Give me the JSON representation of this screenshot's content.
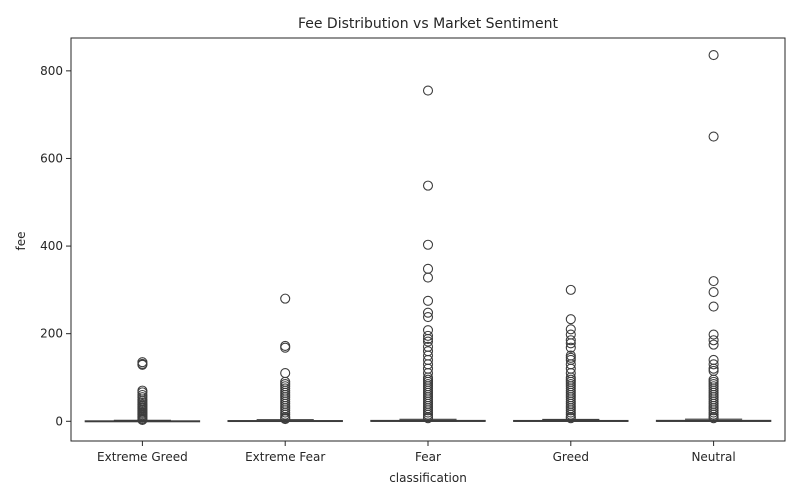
{
  "chart_data": {
    "type": "box",
    "title": "Fee Distribution vs Market Sentiment",
    "xlabel": "classification",
    "ylabel": "fee",
    "categories": [
      "Extreme Greed",
      "Extreme Fear",
      "Fear",
      "Greed",
      "Neutral"
    ],
    "ylim": [
      -45,
      875
    ],
    "yticks": [
      0,
      200,
      400,
      600,
      800
    ],
    "grid": false,
    "legend": "none",
    "colors": {
      "box_face": "#4c72b0",
      "line": "#3d3d3d",
      "frame": "#262626"
    },
    "boxes": [
      {
        "category": "Extreme Greed",
        "min": 0,
        "q1": 0.0,
        "median": 0.2,
        "q3": 0.9,
        "max": 2.2,
        "outliers": [
          135,
          131,
          129,
          70,
          66,
          60,
          55,
          50,
          46,
          42,
          38,
          35,
          32,
          29,
          26,
          23,
          20,
          17,
          14,
          11,
          8,
          5,
          3
        ]
      },
      {
        "category": "Extreme Fear",
        "min": 0,
        "q1": 0.0,
        "median": 0.3,
        "q3": 1.5,
        "max": 3.6,
        "outliers": [
          280,
          172,
          168,
          110,
          90,
          85,
          80,
          75,
          70,
          65,
          60,
          55,
          50,
          45,
          40,
          35,
          30,
          25,
          20,
          15,
          10,
          7,
          5
        ]
      },
      {
        "category": "Fear",
        "min": 0,
        "q1": 0.0,
        "median": 0.4,
        "q3": 1.8,
        "max": 4.5,
        "outliers": [
          755,
          538,
          403,
          348,
          328,
          275,
          248,
          238,
          208,
          195,
          188,
          182,
          170,
          160,
          150,
          140,
          130,
          120,
          110,
          100,
          95,
          90,
          85,
          80,
          75,
          70,
          65,
          60,
          55,
          50,
          45,
          40,
          35,
          30,
          25,
          20,
          15,
          10,
          7
        ]
      },
      {
        "category": "Greed",
        "min": 0,
        "q1": 0.0,
        "median": 0.4,
        "q3": 1.7,
        "max": 4.2,
        "outliers": [
          300,
          233,
          210,
          198,
          185,
          178,
          168,
          150,
          145,
          140,
          130,
          120,
          110,
          100,
          95,
          90,
          85,
          80,
          75,
          70,
          65,
          60,
          55,
          50,
          45,
          40,
          35,
          30,
          25,
          20,
          15,
          10,
          7
        ]
      },
      {
        "category": "Neutral",
        "min": 0,
        "q1": 0.0,
        "median": 0.4,
        "q3": 1.9,
        "max": 4.8,
        "outliers": [
          836,
          650,
          320,
          295,
          262,
          198,
          185,
          175,
          140,
          130,
          120,
          115,
          95,
          90,
          85,
          80,
          75,
          70,
          65,
          60,
          55,
          50,
          45,
          40,
          35,
          30,
          25,
          20,
          15,
          10,
          7
        ]
      }
    ]
  }
}
